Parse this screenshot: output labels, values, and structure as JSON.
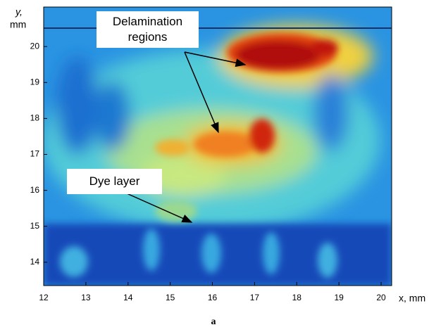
{
  "chart_data": {
    "type": "heatmap",
    "xlabel": "x, mm",
    "ylabel_lines": [
      "y,",
      "mm"
    ],
    "xlim": [
      12,
      20.25
    ],
    "xticks": [
      12,
      13,
      14,
      15,
      16,
      17,
      18,
      19,
      20
    ],
    "ylim": [
      13.35,
      21.1
    ],
    "yticks": [
      14,
      15,
      16,
      17,
      18,
      19,
      20
    ],
    "annotations": [
      "Delamination regions",
      "Dye layer"
    ],
    "caption": "a"
  }
}
